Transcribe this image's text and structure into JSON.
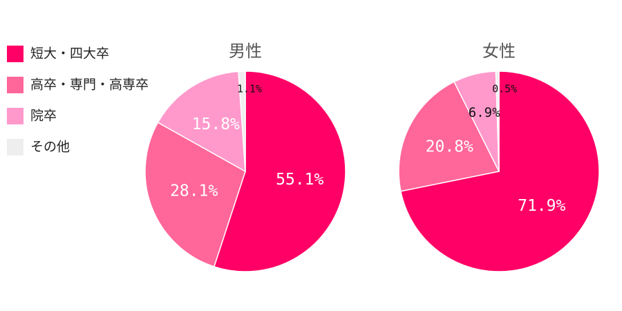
{
  "legend": {
    "labels": [
      "短大・四大卒",
      "高卒・専門・高専卒",
      "院卒",
      "その他"
    ],
    "colors": [
      "#ff0066",
      "#ff6699",
      "#ff99cc",
      "#eeeeee"
    ]
  },
  "chart_data": [
    {
      "type": "pie",
      "title": "男性",
      "values": [
        55.1,
        28.1,
        15.8,
        1.1
      ],
      "value_labels": [
        "55.1%",
        "28.1%",
        "15.8%",
        "1.1%"
      ]
    },
    {
      "type": "pie",
      "title": "女性",
      "values": [
        71.9,
        20.8,
        6.9,
        0.5
      ],
      "value_labels": [
        "71.9%",
        "20.8%",
        "6.9%",
        "0.5%"
      ]
    }
  ]
}
